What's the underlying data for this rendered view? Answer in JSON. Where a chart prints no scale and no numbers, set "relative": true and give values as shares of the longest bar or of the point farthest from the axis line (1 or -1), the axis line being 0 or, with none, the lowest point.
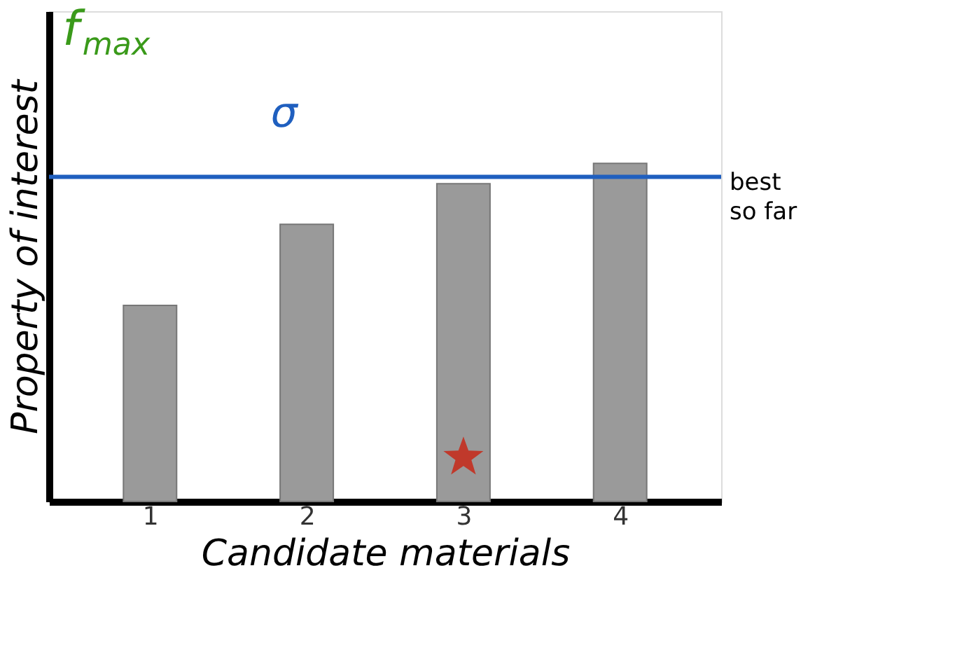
{
  "chart_data": {
    "type": "bar",
    "relative": true,
    "xlabel": "Candidate materials",
    "ylabel": "Property of interest",
    "categories": [
      "1",
      "2",
      "3",
      "4"
    ],
    "series": [
      {
        "color": "#9a9a9a",
        "values": [
          0.58,
          0.82,
          0.94,
          1.0
        ]
      },
      {
        "type": "scatter",
        "marker": "star",
        "color": "#c0392b",
        "x": [
          "3"
        ],
        "values": [
          0.13
        ]
      }
    ],
    "ref_lines": [
      {
        "axis": "y",
        "value": 0.96,
        "label": "best so far",
        "color": "#1f5fbf"
      }
    ],
    "annotations": [
      "f$_{max}$",
      "σ"
    ],
    "tick_labels": "x",
    "grid": false
  }
}
